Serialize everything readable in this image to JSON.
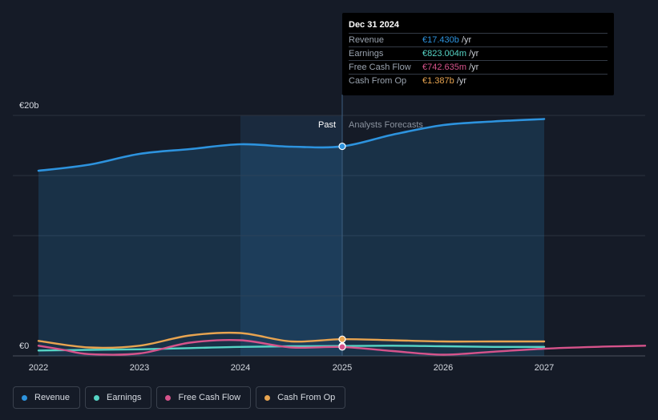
{
  "chart_data": {
    "type": "line",
    "title": "",
    "xlabel": "",
    "ylabel": "",
    "y_axis_labels": [
      "€20b",
      "€0"
    ],
    "ylim": [
      0,
      20
    ],
    "xlim": [
      2022,
      2028
    ],
    "x_ticks": [
      2022,
      2023,
      2024,
      2025,
      2026,
      2027
    ],
    "x_tick_labels": [
      "2022",
      "2023",
      "2024",
      "2025",
      "2026",
      "2027"
    ],
    "past_label": "Past",
    "forecast_label": "Analysts Forecasts",
    "split_x": 2025,
    "highlight_start_x": 2024,
    "grid": true,
    "legend_position": "bottom-left",
    "series": [
      {
        "name": "Revenue",
        "color": "#2d93de",
        "filled": true,
        "points": [
          [
            2022,
            15.4
          ],
          [
            2022.5,
            15.9
          ],
          [
            2023,
            16.8
          ],
          [
            2023.5,
            17.2
          ],
          [
            2024,
            17.6
          ],
          [
            2024.5,
            17.4
          ],
          [
            2025,
            17.43
          ],
          [
            2025.5,
            18.4
          ],
          [
            2026,
            19.2
          ],
          [
            2026.5,
            19.5
          ],
          [
            2027,
            19.7
          ]
        ]
      },
      {
        "name": "Earnings",
        "color": "#56d4c5",
        "filled": false,
        "points": [
          [
            2022,
            0.45
          ],
          [
            2022.5,
            0.5
          ],
          [
            2023,
            0.55
          ],
          [
            2023.5,
            0.65
          ],
          [
            2024,
            0.75
          ],
          [
            2024.5,
            0.8
          ],
          [
            2025,
            0.823
          ],
          [
            2025.5,
            0.85
          ],
          [
            2026,
            0.8
          ],
          [
            2026.5,
            0.75
          ],
          [
            2027,
            0.75
          ]
        ]
      },
      {
        "name": "Free Cash Flow",
        "color": "#d6538b",
        "filled": false,
        "points": [
          [
            2022,
            0.85
          ],
          [
            2022.25,
            0.5
          ],
          [
            2022.5,
            0.15
          ],
          [
            2023,
            0.2
          ],
          [
            2023.5,
            1.1
          ],
          [
            2024,
            1.3
          ],
          [
            2024.5,
            0.7
          ],
          [
            2025,
            0.743
          ],
          [
            2025.5,
            0.4
          ],
          [
            2026,
            0.1
          ],
          [
            2026.5,
            0.35
          ],
          [
            2027,
            0.6
          ],
          [
            2027.5,
            0.75
          ],
          [
            2028,
            0.85
          ]
        ]
      },
      {
        "name": "Cash From Op",
        "color": "#e8a450",
        "filled": false,
        "points": [
          [
            2022,
            1.25
          ],
          [
            2022.5,
            0.7
          ],
          [
            2023,
            0.85
          ],
          [
            2023.5,
            1.7
          ],
          [
            2024,
            1.9
          ],
          [
            2024.5,
            1.2
          ],
          [
            2025,
            1.387
          ],
          [
            2025.5,
            1.3
          ],
          [
            2026,
            1.2
          ],
          [
            2026.5,
            1.2
          ],
          [
            2027,
            1.2
          ]
        ]
      }
    ]
  },
  "tooltip": {
    "title": "Dec 31 2024",
    "rows": [
      {
        "name": "Revenue",
        "value": "€17.430b",
        "unit": " /yr",
        "color": "#2d93de"
      },
      {
        "name": "Earnings",
        "value": "€823.004m",
        "unit": " /yr",
        "color": "#56d4c5"
      },
      {
        "name": "Free Cash Flow",
        "value": "€742.635m",
        "unit": " /yr",
        "color": "#d6538b"
      },
      {
        "name": "Cash From Op",
        "value": "€1.387b",
        "unit": " /yr",
        "color": "#e8a450"
      }
    ]
  },
  "legend": {
    "items": [
      {
        "label": "Revenue",
        "color": "#2d93de"
      },
      {
        "label": "Earnings",
        "color": "#56d4c5"
      },
      {
        "label": "Free Cash Flow",
        "color": "#d6538b"
      },
      {
        "label": "Cash From Op",
        "color": "#e8a450"
      }
    ]
  }
}
